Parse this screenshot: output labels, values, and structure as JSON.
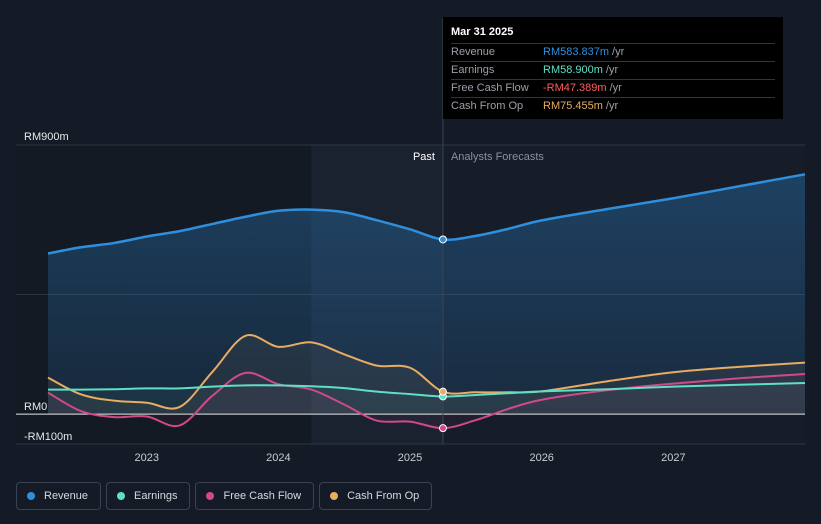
{
  "colors": {
    "revenue": "#2f8fdc",
    "earnings": "#5ee0c6",
    "fcf": "#d04a89",
    "cfo": "#e8ac62",
    "fcf_negative": "#ff5b5b"
  },
  "tooltip": {
    "date": "Mar 31 2025",
    "rows": [
      {
        "label": "Revenue",
        "value": "RM583.837m",
        "unit": "/yr"
      },
      {
        "label": "Earnings",
        "value": "RM58.900m",
        "unit": "/yr"
      },
      {
        "label": "Free Cash Flow",
        "value": "-RM47.389m",
        "unit": "/yr"
      },
      {
        "label": "Cash From Op",
        "value": "RM75.455m",
        "unit": "/yr"
      }
    ]
  },
  "legend": [
    {
      "label": "Revenue",
      "key": "revenue"
    },
    {
      "label": "Earnings",
      "key": "earnings"
    },
    {
      "label": "Free Cash Flow",
      "key": "fcf"
    },
    {
      "label": "Cash From Op",
      "key": "cfo"
    }
  ],
  "chart_data": {
    "type": "line",
    "title": "",
    "xlabel": "",
    "ylabel": "",
    "ylim": [
      -100,
      900
    ],
    "xlim": [
      2022.25,
      2028.0
    ],
    "y_ticks": [
      {
        "value": 900,
        "label": "RM900m"
      },
      {
        "value": 0,
        "label": "RM0"
      },
      {
        "value": -100,
        "label": "-RM100m"
      }
    ],
    "x_ticks": [
      {
        "value": 2023.0,
        "label": "2023"
      },
      {
        "value": 2024.0,
        "label": "2024"
      },
      {
        "value": 2025.0,
        "label": "2025"
      },
      {
        "value": 2026.0,
        "label": "2026"
      },
      {
        "value": 2027.0,
        "label": "2027"
      }
    ],
    "past_label": "Past",
    "forecast_label": "Analysts Forecasts",
    "past_start": 2024.25,
    "divider": 2025.25,
    "series": [
      {
        "name": "Revenue",
        "key": "revenue",
        "fill": true,
        "points": [
          [
            2022.25,
            537
          ],
          [
            2022.5,
            558
          ],
          [
            2022.75,
            572
          ],
          [
            2023.0,
            594
          ],
          [
            2023.25,
            612
          ],
          [
            2023.5,
            636
          ],
          [
            2023.75,
            660
          ],
          [
            2024.0,
            680
          ],
          [
            2024.25,
            684
          ],
          [
            2024.5,
            675
          ],
          [
            2024.75,
            648
          ],
          [
            2025.0,
            618
          ],
          [
            2025.25,
            584
          ],
          [
            2025.5,
            596
          ],
          [
            2025.75,
            620
          ],
          [
            2026.0,
            648
          ],
          [
            2026.5,
            686
          ],
          [
            2027.0,
            722
          ],
          [
            2027.5,
            762
          ],
          [
            2028.0,
            802
          ]
        ]
      },
      {
        "name": "Earnings",
        "key": "earnings",
        "fill": false,
        "points": [
          [
            2022.25,
            82
          ],
          [
            2022.5,
            82
          ],
          [
            2022.75,
            83
          ],
          [
            2023.0,
            86
          ],
          [
            2023.25,
            86
          ],
          [
            2023.5,
            92
          ],
          [
            2023.75,
            96
          ],
          [
            2024.0,
            96
          ],
          [
            2024.25,
            93
          ],
          [
            2024.5,
            87
          ],
          [
            2024.75,
            75
          ],
          [
            2025.0,
            67
          ],
          [
            2025.25,
            59
          ],
          [
            2025.5,
            64
          ],
          [
            2025.75,
            70
          ],
          [
            2026.0,
            76
          ],
          [
            2026.5,
            83
          ],
          [
            2027.0,
            92
          ],
          [
            2027.5,
            98
          ],
          [
            2028.0,
            104
          ]
        ]
      },
      {
        "name": "Free Cash Flow",
        "key": "fcf",
        "fill": false,
        "points": [
          [
            2022.25,
            72
          ],
          [
            2022.5,
            10
          ],
          [
            2022.75,
            -10
          ],
          [
            2023.0,
            -8
          ],
          [
            2023.25,
            -38
          ],
          [
            2023.5,
            62
          ],
          [
            2023.75,
            138
          ],
          [
            2024.0,
            100
          ],
          [
            2024.25,
            82
          ],
          [
            2024.5,
            32
          ],
          [
            2024.75,
            -22
          ],
          [
            2025.0,
            -25
          ],
          [
            2025.25,
            -47
          ],
          [
            2025.5,
            -20
          ],
          [
            2025.75,
            18
          ],
          [
            2026.0,
            48
          ],
          [
            2026.5,
            80
          ],
          [
            2027.0,
            102
          ],
          [
            2027.5,
            120
          ],
          [
            2028.0,
            134
          ]
        ]
      },
      {
        "name": "Cash From Op",
        "key": "cfo",
        "fill": false,
        "points": [
          [
            2022.25,
            122
          ],
          [
            2022.5,
            66
          ],
          [
            2022.75,
            45
          ],
          [
            2023.0,
            38
          ],
          [
            2023.25,
            24
          ],
          [
            2023.5,
            142
          ],
          [
            2023.75,
            262
          ],
          [
            2024.0,
            225
          ],
          [
            2024.25,
            240
          ],
          [
            2024.5,
            200
          ],
          [
            2024.75,
            162
          ],
          [
            2025.0,
            155
          ],
          [
            2025.25,
            75
          ],
          [
            2025.5,
            73
          ],
          [
            2025.75,
            73
          ],
          [
            2026.0,
            76
          ],
          [
            2026.5,
            110
          ],
          [
            2027.0,
            140
          ],
          [
            2027.5,
            158
          ],
          [
            2028.0,
            172
          ]
        ]
      }
    ],
    "tooltip_x": 2025.25
  }
}
